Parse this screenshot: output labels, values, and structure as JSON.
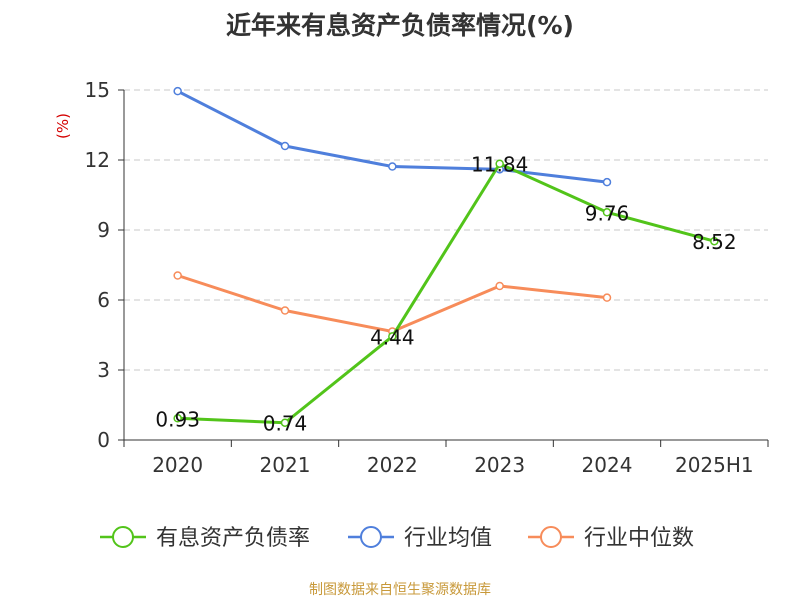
{
  "title": "近年来有息资产负债率情况(%)",
  "source": "制图数据来自恒生聚源数据库",
  "chart_data": {
    "type": "line",
    "title": "近年来有息资产负债率情况(%)",
    "ylabel": "(%)",
    "xlabel": "",
    "categories": [
      "2020",
      "2021",
      "2022",
      "2023",
      "2024",
      "2025H1"
    ],
    "ylim": [
      0,
      15
    ],
    "yticks": [
      0,
      3,
      6,
      9,
      12,
      15
    ],
    "grid": true,
    "legend_position": "bottom",
    "series": [
      {
        "name": "有息资产负债率",
        "color": "#52c41a",
        "values": [
          0.93,
          0.74,
          4.44,
          11.84,
          9.76,
          8.52
        ],
        "labels": [
          "0.93",
          "0.74",
          "4.44",
          "11.84",
          "9.76",
          "8.52"
        ]
      },
      {
        "name": "行业均值",
        "color": "#4f7fdc",
        "values": [
          14.95,
          12.6,
          11.72,
          11.6,
          11.05,
          null
        ]
      },
      {
        "name": "行业中位数",
        "color": "#f78c5a",
        "values": [
          7.05,
          5.55,
          4.65,
          6.6,
          6.1,
          null
        ]
      }
    ]
  }
}
